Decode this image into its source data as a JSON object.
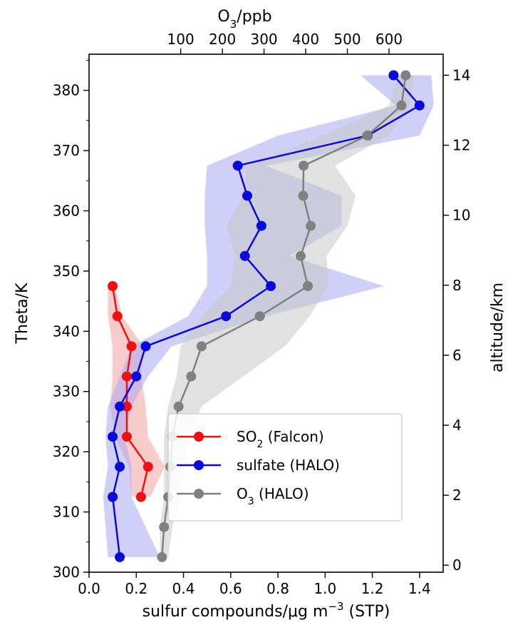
{
  "chart_data": {
    "type": "line",
    "bottom_axis": {
      "label_main": "sulfur compounds/μg m",
      "label_sup": "−3",
      "label_tail": " (STP)",
      "range": [
        0,
        1.5
      ],
      "ticks": [
        "0.0",
        "0.2",
        "0.4",
        "0.6",
        "0.8",
        "1.0",
        "1.2",
        "1.4"
      ]
    },
    "top_axis": {
      "label_main": "O",
      "label_sub": "3",
      "label_tail": "/ppb",
      "range": [
        -120,
        730
      ],
      "ticks": [
        "100",
        "200",
        "300",
        "400",
        "500",
        "600"
      ]
    },
    "left_axis": {
      "label": "Theta/K",
      "range": [
        300,
        386
      ],
      "ticks": [
        "300",
        "310",
        "320",
        "330",
        "340",
        "350",
        "360",
        "370",
        "380"
      ]
    },
    "right_axis": {
      "label": "altitude/km",
      "range": [
        -0.2,
        14.6
      ],
      "ticks": [
        "0",
        "2",
        "4",
        "6",
        "8",
        "10",
        "12",
        "14"
      ]
    },
    "series": [
      {
        "name_main": "SO",
        "name_sub": "2",
        "name_tail": " (Falcon)",
        "color": "#ee1111",
        "band_color": "#f4a3a3",
        "x_axis": "bottom",
        "points": [
          [
            0.1,
            347.5
          ],
          [
            0.12,
            342.5
          ],
          [
            0.18,
            337.5
          ],
          [
            0.16,
            332.5
          ],
          [
            0.16,
            327.5
          ],
          [
            0.16,
            322.5
          ],
          [
            0.25,
            317.5
          ],
          [
            0.22,
            312.5
          ]
        ],
        "band_low": [
          0.08,
          0.08,
          0.1,
          0.1,
          0.09,
          0.11,
          0.17,
          0.18
        ],
        "band_high": [
          0.11,
          0.14,
          0.23,
          0.22,
          0.24,
          0.25,
          0.32,
          0.26
        ]
      },
      {
        "name_main": "sulfate (HALO)",
        "color": "#0a0ad8",
        "band_color": "#a8a8f2",
        "x_axis": "bottom",
        "points": [
          [
            1.29,
            382.5
          ],
          [
            1.4,
            377.5
          ],
          [
            1.18,
            372.5
          ],
          [
            0.63,
            367.5
          ],
          [
            0.67,
            362.5
          ],
          [
            0.73,
            357.5
          ],
          [
            0.66,
            352.5
          ],
          [
            0.77,
            347.5
          ],
          [
            0.58,
            342.5
          ],
          [
            0.24,
            337.5
          ],
          [
            0.2,
            332.5
          ],
          [
            0.13,
            327.5
          ],
          [
            0.1,
            322.5
          ],
          [
            0.13,
            317.5
          ],
          [
            0.1,
            312.5
          ],
          [
            0.13,
            302.5
          ]
        ],
        "band_low": [
          1.15,
          1.3,
          0.8,
          0.5,
          0.49,
          0.49,
          0.5,
          0.5,
          0.42,
          0.18,
          0.13,
          0.08,
          0.07,
          0.08,
          0.06,
          0.08
        ],
        "band_high": [
          1.45,
          1.46,
          1.4,
          0.75,
          1.07,
          1.07,
          0.85,
          1.25,
          0.75,
          0.35,
          0.25,
          0.18,
          0.15,
          0.18,
          0.18,
          0.3
        ]
      },
      {
        "name_main": "O",
        "name_sub": "3",
        "name_tail": " (HALO)",
        "color": "#808080",
        "band_color": "#c8c8c8",
        "x_axis": "top",
        "points": [
          [
            640,
            382.5
          ],
          [
            630,
            377.5
          ],
          [
            548,
            372.5
          ],
          [
            395,
            367.5
          ],
          [
            394,
            362.5
          ],
          [
            412,
            357.5
          ],
          [
            388,
            352.5
          ],
          [
            405,
            347.5
          ],
          [
            290,
            342.5
          ],
          [
            150,
            337.5
          ],
          [
            125,
            332.5
          ],
          [
            95,
            327.5
          ],
          [
            80,
            322.5
          ],
          [
            75,
            317.5
          ],
          [
            70,
            312.5
          ],
          [
            60,
            307.5
          ],
          [
            55,
            302.5
          ]
        ],
        "band_low": [
          620,
          600,
          440,
          260,
          250,
          210,
          230,
          220,
          150,
          100,
          90,
          70,
          60,
          60,
          60,
          50,
          50
        ],
        "band_high": [
          660,
          650,
          600,
          470,
          520,
          500,
          450,
          455,
          410,
          350,
          250,
          150,
          120,
          110,
          100,
          80,
          70
        ]
      }
    ],
    "legend": {
      "position": "lower-right"
    }
  }
}
